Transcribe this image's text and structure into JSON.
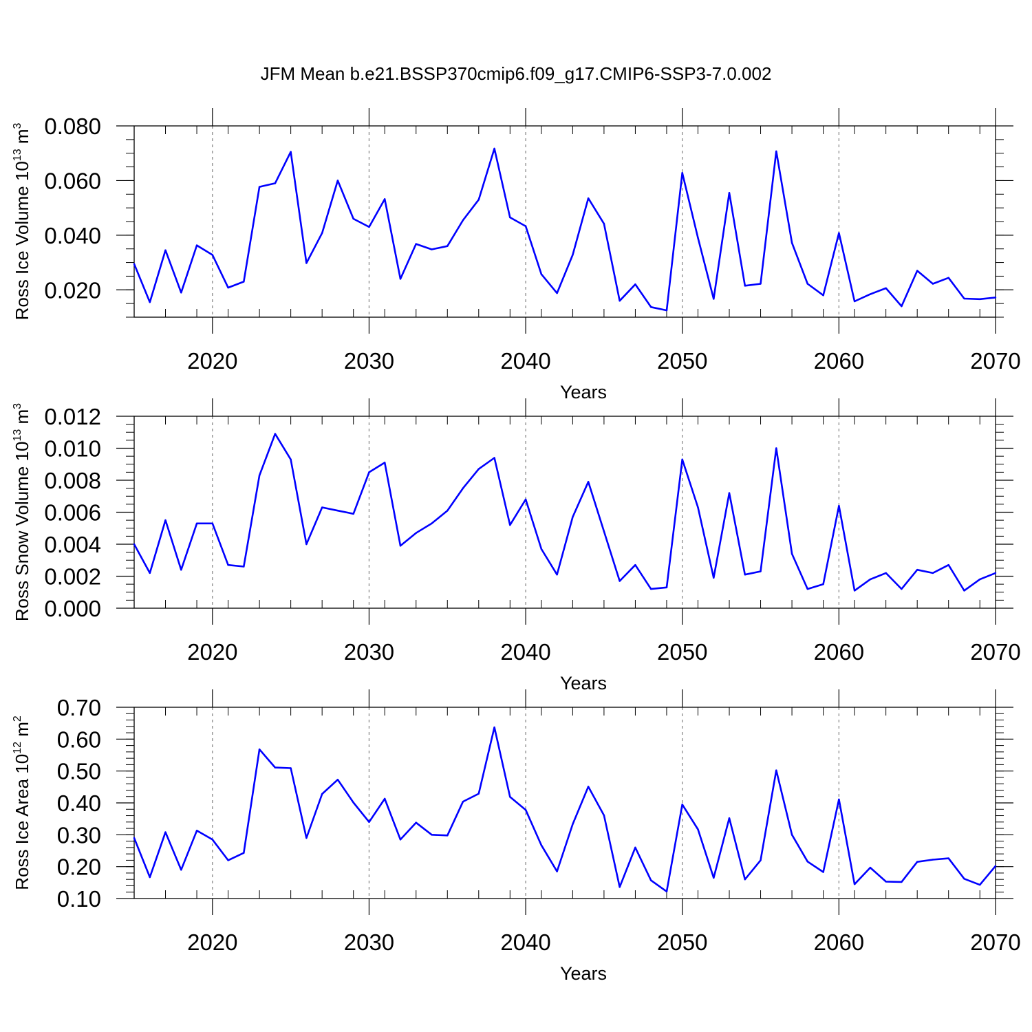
{
  "title": "JFM Mean b.e21.BSSP370cmip6.f09_g17.CMIP6-SSP3-7.0.002",
  "colors": {
    "line": "#0000ff",
    "axis": "#000000",
    "grid": "#808080"
  },
  "chart_data": [
    {
      "type": "line",
      "ylabel": "Ross Ice Volume 10",
      "ylabel_exp": "13",
      "ylabel_unit": " m",
      "ylabel_unit_exp": "3",
      "xlabel": "Years",
      "xlim": [
        2015,
        2070
      ],
      "ylim": [
        0.01,
        0.08
      ],
      "yticks": [
        0.02,
        0.04,
        0.06,
        0.08
      ],
      "ytick_labels": [
        "0.020",
        "0.040",
        "0.060",
        "0.080"
      ],
      "yminor": 0.005,
      "xticks": [
        2020,
        2030,
        2040,
        2050,
        2060,
        2070
      ],
      "xtick_labels": [
        "2020",
        "2030",
        "2040",
        "2050",
        "2060",
        "2070"
      ],
      "x": [
        2015,
        2016,
        2017,
        2018,
        2019,
        2020,
        2021,
        2022,
        2023,
        2024,
        2025,
        2026,
        2027,
        2028,
        2029,
        2030,
        2031,
        2032,
        2033,
        2034,
        2035,
        2036,
        2037,
        2038,
        2039,
        2040,
        2041,
        2042,
        2043,
        2044,
        2045,
        2046,
        2047,
        2048,
        2049,
        2050,
        2051,
        2052,
        2053,
        2054,
        2055,
        2056,
        2057,
        2058,
        2059,
        2060,
        2061,
        2062,
        2063,
        2064,
        2065,
        2066,
        2067,
        2068,
        2069,
        2070
      ],
      "y": [
        0.0295,
        0.0155,
        0.0345,
        0.019,
        0.0363,
        0.0328,
        0.0208,
        0.023,
        0.0577,
        0.059,
        0.0705,
        0.0298,
        0.0408,
        0.06,
        0.046,
        0.043,
        0.0532,
        0.024,
        0.0368,
        0.0348,
        0.036,
        0.0455,
        0.053,
        0.0717,
        0.0465,
        0.0433,
        0.0257,
        0.0188,
        0.0328,
        0.0535,
        0.0442,
        0.016,
        0.022,
        0.0137,
        0.0125,
        0.0628,
        0.039,
        0.0167,
        0.0555,
        0.0215,
        0.0222,
        0.0707,
        0.0372,
        0.0222,
        0.018,
        0.0408,
        0.0158,
        0.0184,
        0.0206,
        0.014,
        0.027,
        0.0222,
        0.0244,
        0.0168,
        0.0166,
        0.0172
      ]
    },
    {
      "type": "line",
      "ylabel": "Ross Snow Volume 10",
      "ylabel_exp": "13",
      "ylabel_unit": " m",
      "ylabel_unit_exp": "3",
      "xlabel": "Years",
      "xlim": [
        2015,
        2070
      ],
      "ylim": [
        0.0,
        0.012
      ],
      "yticks": [
        0.0,
        0.002,
        0.004,
        0.006,
        0.008,
        0.01,
        0.012
      ],
      "ytick_labels": [
        "0.000",
        "0.002",
        "0.004",
        "0.006",
        "0.008",
        "0.010",
        "0.012"
      ],
      "yminor": 0.0005,
      "xticks": [
        2020,
        2030,
        2040,
        2050,
        2060,
        2070
      ],
      "xtick_labels": [
        "2020",
        "2030",
        "2040",
        "2050",
        "2060",
        "2070"
      ],
      "x": [
        2015,
        2016,
        2017,
        2018,
        2019,
        2020,
        2021,
        2022,
        2023,
        2024,
        2025,
        2026,
        2027,
        2028,
        2029,
        2030,
        2031,
        2032,
        2033,
        2034,
        2035,
        2036,
        2037,
        2038,
        2039,
        2040,
        2041,
        2042,
        2043,
        2044,
        2045,
        2046,
        2047,
        2048,
        2049,
        2050,
        2051,
        2052,
        2053,
        2054,
        2055,
        2056,
        2057,
        2058,
        2059,
        2060,
        2061,
        2062,
        2063,
        2064,
        2065,
        2066,
        2067,
        2068,
        2069,
        2070
      ],
      "y": [
        0.004,
        0.0022,
        0.0055,
        0.0024,
        0.0053,
        0.0053,
        0.0027,
        0.0026,
        0.0083,
        0.0109,
        0.0093,
        0.004,
        0.0063,
        0.0061,
        0.0059,
        0.0085,
        0.0091,
        0.0039,
        0.0047,
        0.0053,
        0.0061,
        0.0075,
        0.0087,
        0.0094,
        0.0052,
        0.0068,
        0.0037,
        0.0021,
        0.0057,
        0.0079,
        0.0048,
        0.0017,
        0.0027,
        0.0012,
        0.0013,
        0.0093,
        0.0063,
        0.0019,
        0.0072,
        0.0021,
        0.0023,
        0.01,
        0.0034,
        0.0012,
        0.0015,
        0.0064,
        0.0011,
        0.0018,
        0.0022,
        0.0012,
        0.0024,
        0.0022,
        0.0027,
        0.0011,
        0.0018,
        0.0022
      ]
    },
    {
      "type": "line",
      "ylabel": "Ross Ice Area 10",
      "ylabel_exp": "12",
      "ylabel_unit": " m",
      "ylabel_unit_exp": "2",
      "xlabel": "Years",
      "xlim": [
        2015,
        2070
      ],
      "ylim": [
        0.1,
        0.7
      ],
      "yticks": [
        0.1,
        0.2,
        0.3,
        0.4,
        0.5,
        0.6,
        0.7
      ],
      "ytick_labels": [
        "0.10",
        "0.20",
        "0.30",
        "0.40",
        "0.50",
        "0.60",
        "0.70"
      ],
      "yminor": 0.02,
      "xticks": [
        2020,
        2030,
        2040,
        2050,
        2060,
        2070
      ],
      "xtick_labels": [
        "2020",
        "2030",
        "2040",
        "2050",
        "2060",
        "2070"
      ],
      "x": [
        2015,
        2016,
        2017,
        2018,
        2019,
        2020,
        2021,
        2022,
        2023,
        2024,
        2025,
        2026,
        2027,
        2028,
        2029,
        2030,
        2031,
        2032,
        2033,
        2034,
        2035,
        2036,
        2037,
        2038,
        2039,
        2040,
        2041,
        2042,
        2043,
        2044,
        2045,
        2046,
        2047,
        2048,
        2049,
        2050,
        2051,
        2052,
        2053,
        2054,
        2055,
        2056,
        2057,
        2058,
        2059,
        2060,
        2061,
        2062,
        2063,
        2064,
        2065,
        2066,
        2067,
        2068,
        2069,
        2070
      ],
      "y": [
        0.29,
        0.167,
        0.308,
        0.19,
        0.313,
        0.285,
        0.22,
        0.243,
        0.568,
        0.511,
        0.509,
        0.29,
        0.428,
        0.473,
        0.401,
        0.34,
        0.413,
        0.285,
        0.338,
        0.3,
        0.298,
        0.404,
        0.429,
        0.637,
        0.419,
        0.378,
        0.267,
        0.185,
        0.333,
        0.451,
        0.361,
        0.136,
        0.26,
        0.157,
        0.122,
        0.395,
        0.317,
        0.165,
        0.352,
        0.16,
        0.22,
        0.502,
        0.3,
        0.216,
        0.183,
        0.411,
        0.145,
        0.197,
        0.153,
        0.152,
        0.215,
        0.222,
        0.226,
        0.162,
        0.143,
        0.202
      ]
    }
  ]
}
